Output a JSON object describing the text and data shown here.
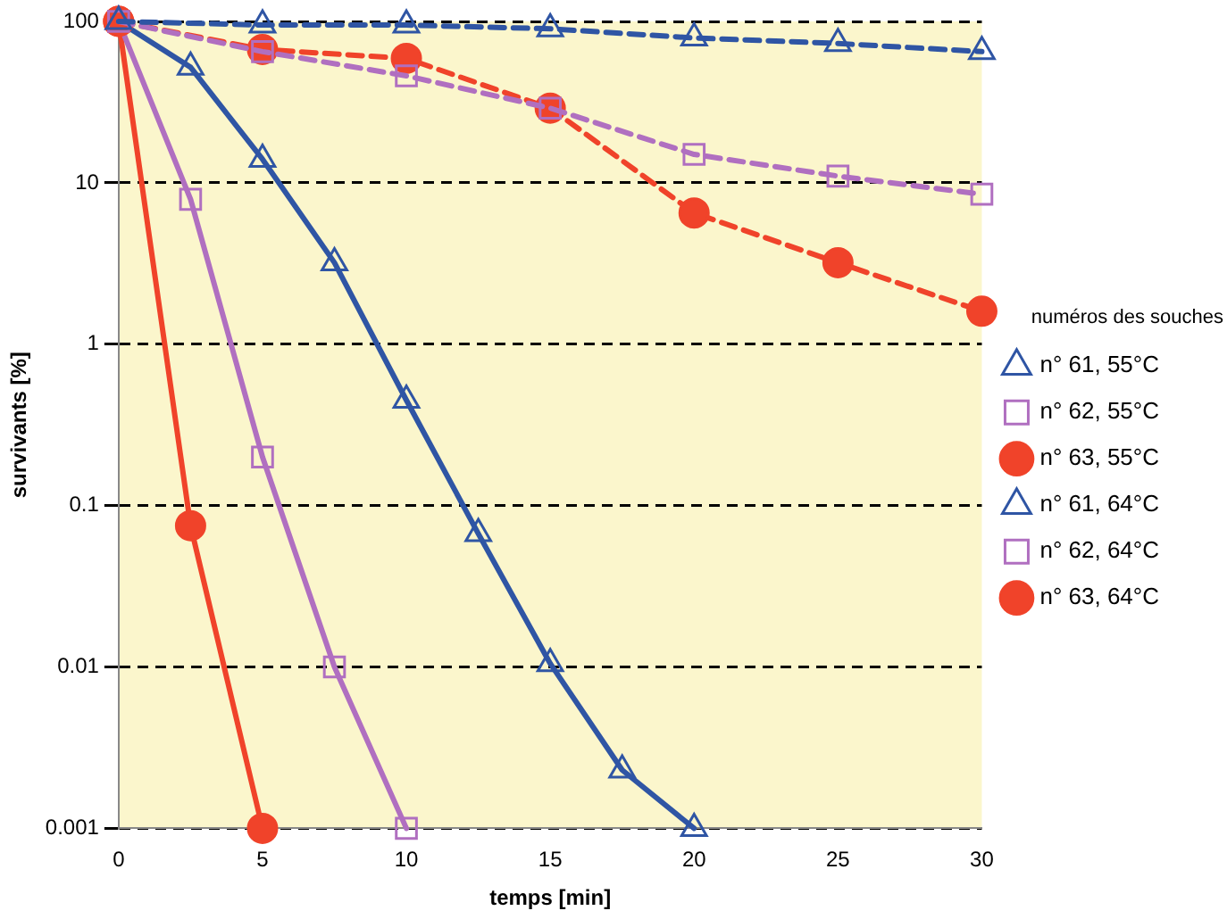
{
  "chart_data": {
    "type": "line",
    "xlabel": "temps [min]",
    "ylabel": "survivants [%]",
    "legend_title": "numéros des souches",
    "legend": "right",
    "log": "y",
    "grid": "y",
    "xlim": [
      0,
      30
    ],
    "xticks": [
      0,
      5,
      10,
      15,
      20,
      25,
      30
    ],
    "ylim": [
      0.001,
      100
    ],
    "yticks": [
      0.001,
      0.01,
      0.1,
      1,
      10,
      100
    ],
    "series": [
      {
        "name": "n° 61, 55°C",
        "color": "#2f55a4",
        "marker": "triangle",
        "line_style": "dashed",
        "x": [
          0,
          5,
          10,
          15,
          20,
          25,
          30
        ],
        "values": [
          100,
          95,
          95,
          90,
          79,
          73,
          65
        ]
      },
      {
        "name": "n° 62, 55°C",
        "color": "#b06fc0",
        "marker": "square",
        "line_style": "dashed",
        "x": [
          0,
          5,
          10,
          15,
          20,
          25,
          30
        ],
        "values": [
          100,
          65,
          46,
          29,
          15,
          11,
          8.5
        ]
      },
      {
        "name": "n° 63, 55°C",
        "color": "#f0432a",
        "marker": "circle",
        "line_style": "dashed",
        "x": [
          0,
          5,
          10,
          15,
          20,
          25,
          30
        ],
        "values": [
          100,
          67,
          59,
          29,
          6.5,
          3.2,
          1.6
        ]
      },
      {
        "name": "n° 61, 64°C",
        "color": "#2f55a4",
        "marker": "triangle",
        "line_style": "solid",
        "x": [
          0,
          2.5,
          5,
          7.5,
          10,
          12.5,
          15,
          17.5,
          20
        ],
        "values": [
          100,
          52,
          14,
          3.2,
          0.45,
          0.067,
          0.0105,
          0.0023,
          0.001
        ]
      },
      {
        "name": "n° 62, 64°C",
        "color": "#b06fc0",
        "marker": "square",
        "line_style": "solid",
        "x": [
          0,
          2.5,
          5,
          7.5,
          10
        ],
        "values": [
          100,
          7.9,
          0.2,
          0.01,
          0.001
        ]
      },
      {
        "name": "n° 63, 64°C",
        "color": "#f0432a",
        "marker": "circle",
        "line_style": "solid",
        "x": [
          0,
          2.5,
          5
        ],
        "values": [
          100,
          0.075,
          0.001
        ]
      }
    ]
  }
}
